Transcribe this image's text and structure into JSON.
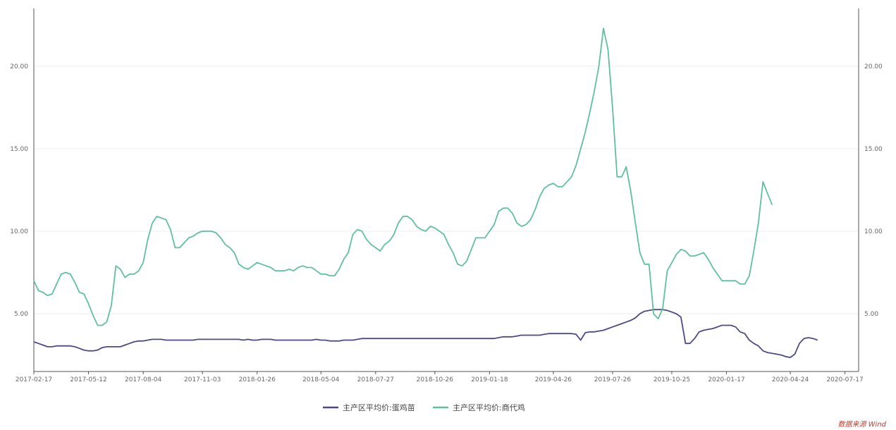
{
  "chart_data": {
    "type": "line",
    "x_dates": [
      "2017-02-17",
      "2017-02-24",
      "2017-03-03",
      "2017-03-10",
      "2017-03-17",
      "2017-03-24",
      "2017-03-31",
      "2017-04-07",
      "2017-04-14",
      "2017-04-21",
      "2017-04-28",
      "2017-05-05",
      "2017-05-12",
      "2017-05-19",
      "2017-05-26",
      "2017-06-02",
      "2017-06-09",
      "2017-06-16",
      "2017-06-23",
      "2017-06-30",
      "2017-07-07",
      "2017-07-14",
      "2017-07-21",
      "2017-07-28",
      "2017-08-04",
      "2017-08-11",
      "2017-08-18",
      "2017-08-25",
      "2017-09-01",
      "2017-09-08",
      "2017-09-15",
      "2017-09-22",
      "2017-09-29",
      "2017-10-06",
      "2017-10-13",
      "2017-10-20",
      "2017-10-27",
      "2017-11-03",
      "2017-11-10",
      "2017-11-17",
      "2017-11-24",
      "2017-12-01",
      "2017-12-08",
      "2017-12-15",
      "2017-12-22",
      "2017-12-29",
      "2018-01-05",
      "2018-01-12",
      "2018-01-19",
      "2018-01-26",
      "2018-02-02",
      "2018-02-09",
      "2018-02-16",
      "2018-02-23",
      "2018-03-02",
      "2018-03-09",
      "2018-03-16",
      "2018-03-23",
      "2018-03-30",
      "2018-04-06",
      "2018-04-13",
      "2018-04-20",
      "2018-04-27",
      "2018-05-04",
      "2018-05-11",
      "2018-05-18",
      "2018-05-25",
      "2018-06-01",
      "2018-06-08",
      "2018-06-15",
      "2018-06-22",
      "2018-06-29",
      "2018-07-06",
      "2018-07-13",
      "2018-07-20",
      "2018-07-27",
      "2018-08-03",
      "2018-08-10",
      "2018-08-17",
      "2018-08-24",
      "2018-08-31",
      "2018-09-07",
      "2018-09-14",
      "2018-09-21",
      "2018-09-28",
      "2018-10-05",
      "2018-10-12",
      "2018-10-19",
      "2018-10-26",
      "2018-11-02",
      "2018-11-09",
      "2018-11-16",
      "2018-11-23",
      "2018-11-30",
      "2018-12-07",
      "2018-12-14",
      "2018-12-21",
      "2018-12-28",
      "2019-01-04",
      "2019-01-11",
      "2019-01-18",
      "2019-01-25",
      "2019-02-01",
      "2019-02-08",
      "2019-02-15",
      "2019-02-22",
      "2019-03-01",
      "2019-03-08",
      "2019-03-15",
      "2019-03-22",
      "2019-03-29",
      "2019-04-05",
      "2019-04-12",
      "2019-04-19",
      "2019-04-26",
      "2019-05-03",
      "2019-05-10",
      "2019-05-17",
      "2019-05-24",
      "2019-05-31",
      "2019-06-07",
      "2019-06-14",
      "2019-06-21",
      "2019-06-28",
      "2019-07-05",
      "2019-07-12",
      "2019-07-19",
      "2019-07-26",
      "2019-08-02",
      "2019-08-09",
      "2019-08-16",
      "2019-08-23",
      "2019-08-30",
      "2019-09-06",
      "2019-09-13",
      "2019-09-20",
      "2019-09-27",
      "2019-10-04",
      "2019-10-11",
      "2019-10-18",
      "2019-10-25",
      "2019-11-01",
      "2019-11-08",
      "2019-11-15",
      "2019-11-22",
      "2019-11-29",
      "2019-12-06",
      "2019-12-13",
      "2019-12-20",
      "2019-12-27",
      "2020-01-03",
      "2020-01-10",
      "2020-01-17",
      "2020-01-24",
      "2020-01-31",
      "2020-02-07",
      "2020-02-14",
      "2020-02-21",
      "2020-02-28",
      "2020-03-06",
      "2020-03-13",
      "2020-03-20",
      "2020-03-27",
      "2020-04-03",
      "2020-04-10",
      "2020-04-17",
      "2020-04-24",
      "2020-05-01",
      "2020-05-08",
      "2020-05-15",
      "2020-05-22",
      "2020-05-29",
      "2020-06-05",
      "2020-06-12",
      "2020-06-19",
      "2020-06-26",
      "2020-07-03",
      "2020-07-10",
      "2020-07-17",
      "2020-07-24",
      "2020-07-31",
      "2020-08-07"
    ],
    "x_ticks": [
      "2017-02-17",
      "2017-05-12",
      "2017-08-04",
      "2017-11-03",
      "2018-01-26",
      "2018-05-04",
      "2018-07-27",
      "2018-10-26",
      "2019-01-18",
      "2019-04-26",
      "2019-07-26",
      "2019-10-25",
      "2020-01-17",
      "2020-04-24",
      "2020-07-17"
    ],
    "y_ticks": [
      "5.00",
      "10.00",
      "15.00",
      "20.00"
    ],
    "ylim": [
      1.5,
      23.5
    ],
    "grid": true,
    "legend_position": "bottom-center",
    "series": [
      {
        "name": "主产区平均价:蛋鸡苗",
        "color": "#4b4a86",
        "values": [
          3.3,
          3.2,
          3.1,
          3.0,
          3.0,
          3.05,
          3.05,
          3.05,
          3.05,
          3.0,
          2.9,
          2.8,
          2.75,
          2.75,
          2.8,
          2.95,
          3.0,
          3.0,
          3.0,
          3.0,
          3.1,
          3.2,
          3.3,
          3.35,
          3.35,
          3.4,
          3.45,
          3.45,
          3.45,
          3.4,
          3.4,
          3.4,
          3.4,
          3.4,
          3.4,
          3.4,
          3.45,
          3.45,
          3.45,
          3.45,
          3.45,
          3.45,
          3.45,
          3.45,
          3.45,
          3.45,
          3.4,
          3.45,
          3.4,
          3.4,
          3.45,
          3.45,
          3.45,
          3.4,
          3.4,
          3.4,
          3.4,
          3.4,
          3.4,
          3.4,
          3.4,
          3.4,
          3.45,
          3.4,
          3.4,
          3.35,
          3.35,
          3.35,
          3.4,
          3.4,
          3.4,
          3.45,
          3.5,
          3.5,
          3.5,
          3.5,
          3.5,
          3.5,
          3.5,
          3.5,
          3.5,
          3.5,
          3.5,
          3.5,
          3.5,
          3.5,
          3.5,
          3.5,
          3.5,
          3.5,
          3.5,
          3.5,
          3.5,
          3.5,
          3.5,
          3.5,
          3.5,
          3.5,
          3.5,
          3.5,
          3.5,
          3.5,
          3.55,
          3.6,
          3.6,
          3.6,
          3.65,
          3.7,
          3.7,
          3.7,
          3.7,
          3.7,
          3.75,
          3.8,
          3.8,
          3.8,
          3.8,
          3.8,
          3.8,
          3.75,
          3.4,
          3.85,
          3.9,
          3.9,
          3.95,
          4.0,
          4.1,
          4.2,
          4.3,
          4.4,
          4.5,
          4.6,
          4.75,
          5.0,
          5.15,
          5.2,
          5.25,
          5.25,
          5.25,
          5.2,
          5.1,
          5.0,
          4.8,
          3.2,
          3.2,
          3.5,
          3.9,
          4.0,
          4.05,
          4.1,
          4.2,
          4.3,
          4.3,
          4.3,
          4.2,
          3.9,
          3.8,
          3.4,
          3.2,
          3.05,
          2.75,
          2.65,
          2.6,
          2.55,
          2.5,
          2.4,
          2.35,
          2.55,
          3.2,
          3.5,
          3.55,
          3.5,
          3.4
        ]
      },
      {
        "name": "主产区平均价:商代鸡",
        "color": "#5fbfa1",
        "values": [
          7.0,
          6.4,
          6.3,
          6.1,
          6.2,
          6.8,
          7.4,
          7.5,
          7.4,
          6.9,
          6.3,
          6.2,
          5.6,
          4.9,
          4.3,
          4.3,
          4.5,
          5.5,
          7.9,
          7.7,
          7.2,
          7.4,
          7.4,
          7.6,
          8.1,
          9.5,
          10.5,
          10.9,
          10.8,
          10.7,
          10.1,
          9.0,
          9.0,
          9.3,
          9.6,
          9.7,
          9.9,
          10.0,
          10.0,
          10.0,
          9.9,
          9.6,
          9.2,
          9.0,
          8.7,
          8.0,
          7.8,
          7.7,
          7.9,
          8.1,
          8.0,
          7.9,
          7.8,
          7.6,
          7.6,
          7.6,
          7.7,
          7.6,
          7.8,
          7.9,
          7.8,
          7.8,
          7.6,
          7.4,
          7.4,
          7.3,
          7.3,
          7.7,
          8.3,
          8.7,
          9.8,
          10.1,
          10.0,
          9.5,
          9.2,
          9.0,
          8.8,
          9.2,
          9.4,
          9.8,
          10.5,
          10.9,
          10.9,
          10.7,
          10.3,
          10.1,
          10.0,
          10.3,
          10.2,
          10.0,
          9.8,
          9.2,
          8.7,
          8.0,
          7.9,
          8.2,
          8.9,
          9.6,
          9.6,
          9.6,
          10.0,
          10.4,
          11.2,
          11.4,
          11.4,
          11.1,
          10.5,
          10.3,
          10.4,
          10.7,
          11.3,
          12.1,
          12.6,
          12.8,
          12.9,
          12.7,
          12.7,
          13.0,
          13.3,
          14.0,
          15.0,
          16.0,
          17.2,
          18.5,
          20.0,
          22.3,
          21.0,
          17.5,
          13.3,
          13.3,
          13.9,
          12.4,
          10.5,
          8.7,
          8.0,
          8.0,
          5.0,
          4.7,
          5.3,
          7.6,
          8.1,
          8.6,
          8.9,
          8.8,
          8.5,
          8.5,
          8.6,
          8.7,
          8.3,
          7.8,
          7.4,
          7.0,
          7.0,
          7.0,
          7.0,
          6.8,
          6.8,
          7.3,
          8.8,
          10.5,
          13.0,
          12.3,
          11.6
        ]
      }
    ]
  },
  "source_note": "数据来源 Wind"
}
